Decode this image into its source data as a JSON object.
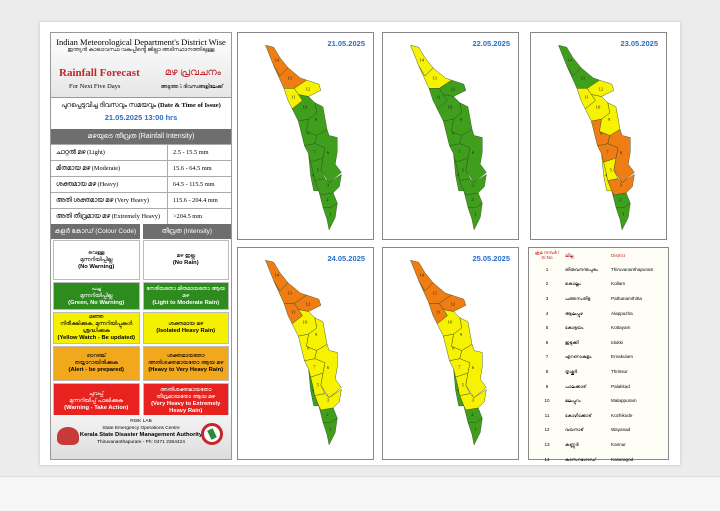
{
  "header": {
    "title": "Indian Meteorological Department's District Wise",
    "title_ml": "ഇന്ത്യൻ കാലാവസ്ഥ വകുപ്പിൻ്റെ ജില്ലാ അടിസ്ഥാനത്തിലുള്ള",
    "forecast": "Rainfall Forecast",
    "forecast_ml": "മഴ പ്രവചനം",
    "next": "For Next Five Days",
    "next_ml": "അടുത്ത 5 ദിവസങ്ങളിലേക്ക്"
  },
  "issue": {
    "label_ml": "പുറപ്പെടുവിച്ച ദിവസവും സമയവും",
    "label": "(Date & Time of Issue)",
    "datetime": "21.05.2025 13:00 hrs"
  },
  "intensity": {
    "header": "മഴയുടെ തീവ്രത (Rainfall Intensity)",
    "rows": [
      {
        "name": "ചാറ്റൽ മഴ (Light)",
        "range": "2.5 - 15.5 mm"
      },
      {
        "name": "മിതമായ മഴ (Moderate)",
        "range": "15.6 - 64.5 mm"
      },
      {
        "name": "ശക്തമായ മഴ (Heavy)",
        "range": "64.5 - 115.5 mm"
      },
      {
        "name": "അതി ശക്തമായ മഴ (Very Heavy)",
        "range": "115.6 - 204.4 mm"
      },
      {
        "name": "അതി തീവ്രമായ മഴ (Extremely Heavy)",
        "range": ">204.5 mm"
      }
    ]
  },
  "colour_code": {
    "header_left": "കളർ കോഡ് (Colour Code)",
    "header_right": "തീവ്രത (Intensity)",
    "rows": [
      {
        "bg": "#ffffff",
        "fg": "#000",
        "l1": "വെള്ള",
        "l2": "മുന്നറിയിപ്പില്ല",
        "l3": "(No Warning)",
        "r1": "മഴ ഇല്ല",
        "r2": "(No Rain)"
      },
      {
        "bg": "#2e8b1e",
        "fg": "#fff",
        "l1": "പച്ച",
        "l2": "മുന്നറിയിപ്പില്ല",
        "l3": "(Green, No Warning)",
        "r1": "നേരിയതോ മിതമായതോ ആയ മഴ",
        "r2": "(Light to Moderate Rain)"
      },
      {
        "bg": "#f5f000",
        "fg": "#000",
        "l1": "മഞ്ഞ",
        "l2": "നിരീക്ഷിക്കുക, മുന്നറിയിപ്പുകൾ ശ്രദ്ധിക്കുക",
        "l3": "(Yellow Watch - Be updated)",
        "r1": "ശക്തമായ മഴ",
        "r2": "(Isolated Heavy Rain)"
      },
      {
        "bg": "#f2a81d",
        "fg": "#000",
        "l1": "ഓറഞ്ച്",
        "l2": "തയ്യാറായിരിക്കുക",
        "l3": "(Alert - be prepared)",
        "r1": "ശക്തമായതോ അതിശക്തമായതോ ആയ മഴ",
        "r2": "(Heavy to Very Heavy Rain)"
      },
      {
        "bg": "#e8221e",
        "fg": "#fff",
        "l1": "ചുവപ്പ്",
        "l2": "മുന്നറിയിപ്പ് പാലിക്കുക",
        "l3": "(Warning - Take Action)",
        "r1": "അതിശക്തമായതോ തീവ്രമായതോ ആയ മഴ",
        "r2": "(Very Heavy to Extremely Heavy Rain)"
      }
    ]
  },
  "footer": {
    "lab": "RISK LAB",
    "centre": "State Emergency Operations Centre",
    "authority": "Kerala State Disaster Management Authority",
    "address": "Thiruvananthapuram - Ph: 0471 2364424"
  },
  "colors": {
    "G": "#3f9e1c",
    "Y": "#f7f200",
    "O": "#f07d14"
  },
  "maps": [
    {
      "date": "21.05.2025",
      "levels": {
        "1": "G",
        "2": "G",
        "3": "G",
        "4": "G",
        "5": "G",
        "6": "G",
        "7": "G",
        "8": "G",
        "9": "G",
        "10": "G",
        "11": "Y",
        "12": "Y",
        "13": "O",
        "14": "O"
      }
    },
    {
      "date": "22.05.2025",
      "levels": {
        "1": "G",
        "2": "G",
        "3": "G",
        "4": "G",
        "5": "G",
        "6": "G",
        "7": "G",
        "8": "G",
        "9": "G",
        "10": "G",
        "11": "G",
        "12": "G",
        "13": "Y",
        "14": "Y"
      }
    },
    {
      "date": "23.05.2025",
      "levels": {
        "1": "G",
        "2": "G",
        "3": "O",
        "4": "Y",
        "5": "Y",
        "6": "O",
        "7": "O",
        "8": "O",
        "9": "Y",
        "10": "Y",
        "11": "Y",
        "12": "Y",
        "13": "G",
        "14": "G"
      }
    },
    {
      "date": "24.05.2025",
      "levels": {
        "1": "G",
        "2": "G",
        "3": "Y",
        "4": "G",
        "5": "Y",
        "6": "Y",
        "7": "Y",
        "8": "Y",
        "9": "Y",
        "10": "Y",
        "11": "O",
        "12": "O",
        "13": "O",
        "14": "O"
      }
    },
    {
      "date": "25.05.2025",
      "levels": {
        "1": "G",
        "2": "G",
        "3": "Y",
        "4": "G",
        "5": "Y",
        "6": "Y",
        "7": "Y",
        "8": "Y",
        "9": "Y",
        "10": "Y",
        "11": "O",
        "12": "O",
        "13": "O",
        "14": "O"
      }
    }
  ],
  "districts": {
    "headers": [
      "ക്രമ നമ്പർ / Sl.No",
      "ജില്ല",
      "District"
    ],
    "rows": [
      [
        "1",
        "തിരുവനന്തപുരം",
        "Thiruvananthapuram"
      ],
      [
        "2",
        "കൊല്ലം",
        "Kollam"
      ],
      [
        "3",
        "പത്തനംതിട്ട",
        "Pathanamthitta"
      ],
      [
        "4",
        "ആലപ്പുഴ",
        "Alappuzha"
      ],
      [
        "5",
        "കോട്ടയം",
        "Kottayam"
      ],
      [
        "6",
        "ഇടുക്കി",
        "Idukki"
      ],
      [
        "7",
        "എറണാകുളം",
        "Ernakulam"
      ],
      [
        "8",
        "തൃശ്ശൂർ",
        "Thrissur"
      ],
      [
        "9",
        "പാലക്കാട്",
        "Palakkad"
      ],
      [
        "10",
        "മലപ്പുറം",
        "Malappuram"
      ],
      [
        "11",
        "കോഴിക്കോട്",
        "Kozhikode"
      ],
      [
        "12",
        "വയനാട്",
        "Wayanad"
      ],
      [
        "13",
        "കണ്ണൂർ",
        "Kannur"
      ],
      [
        "14",
        "കാസറഗോഡ്",
        "Kasaragod"
      ]
    ]
  }
}
